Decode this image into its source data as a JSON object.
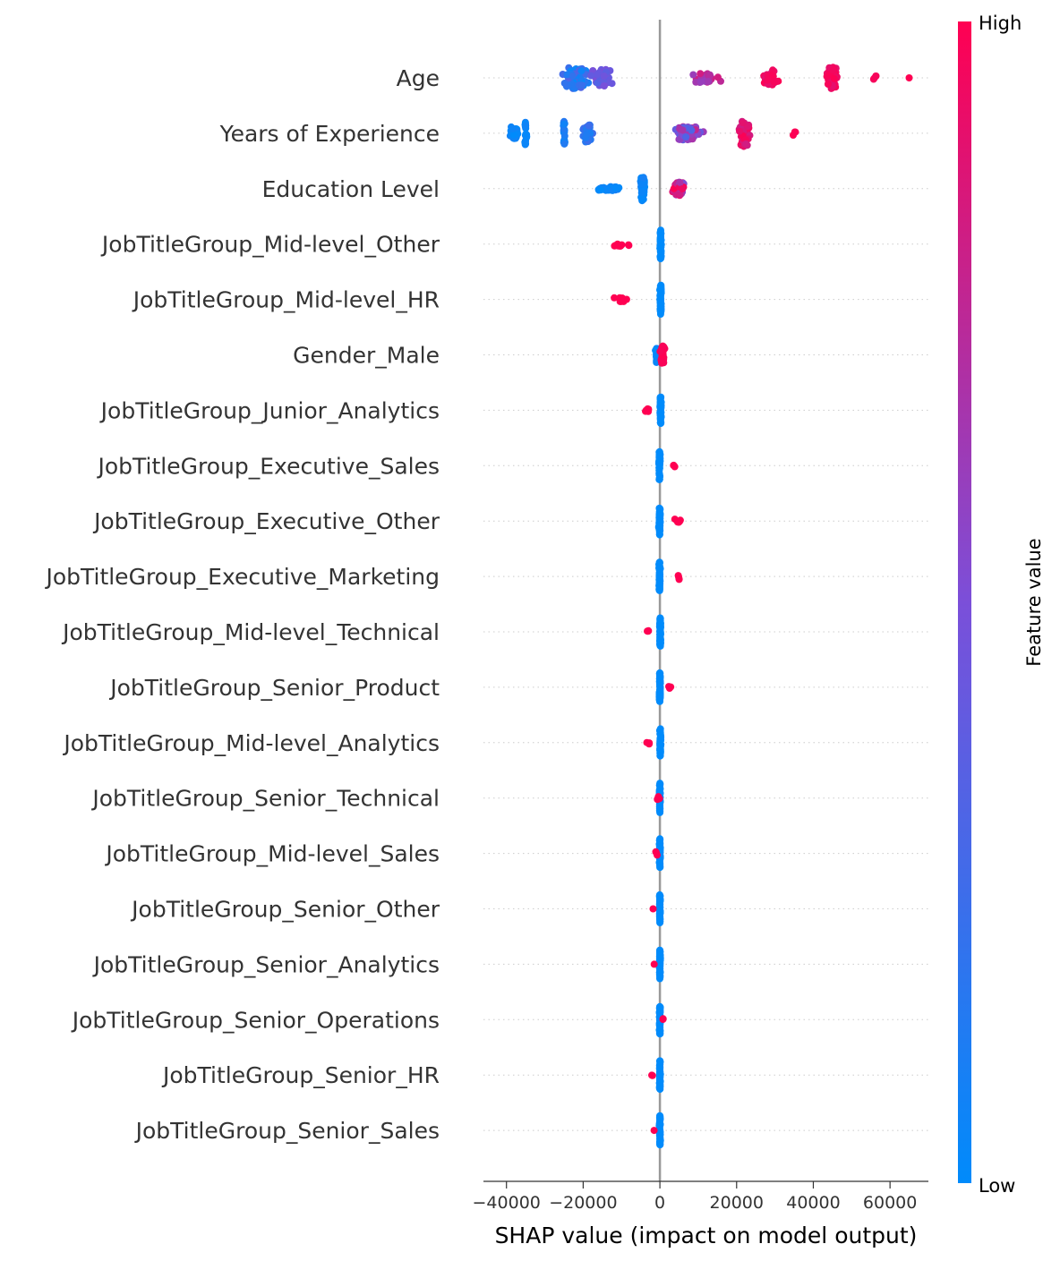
{
  "chart_data": {
    "type": "scatter",
    "subtype": "shap-beeswarm",
    "title": "",
    "xlabel": "SHAP value (impact on model output)",
    "ylabel": "",
    "xlim": [
      -46000,
      70000
    ],
    "xticks": [
      -40000,
      -20000,
      0,
      20000,
      40000,
      60000
    ],
    "xtick_labels": [
      "−40000",
      "−20000",
      "0",
      "20000",
      "40000",
      "60000"
    ],
    "zero_line": true,
    "grid": false,
    "colorbar": {
      "title": "Feature value",
      "high_label": "High",
      "low_label": "Low",
      "low_color": "#008bfb",
      "high_color": "#ff0052",
      "position": "right"
    },
    "features": [
      {
        "name": "Age",
        "clusters": [
          {
            "c": -22000,
            "s": 5500,
            "n": 70,
            "v": [
              0.0,
              0.35
            ],
            "w": 0.55
          },
          {
            "c": -15000,
            "s": 4000,
            "n": 40,
            "v": [
              0.3,
              0.55
            ],
            "w": 0.45
          },
          {
            "c": 12000,
            "s": 7000,
            "n": 30,
            "v": [
              0.6,
              0.85
            ],
            "w": 0.25
          },
          {
            "c": 29000,
            "s": 3500,
            "n": 35,
            "v": [
              0.85,
              1.0
            ],
            "w": 0.4
          },
          {
            "c": 45000,
            "s": 2500,
            "n": 40,
            "v": [
              0.9,
              1.0
            ],
            "w": 0.55
          },
          {
            "c": 56000,
            "s": 1500,
            "n": 4,
            "v": [
              0.95,
              1.0
            ],
            "w": 0.1
          },
          {
            "c": 65000,
            "s": 200,
            "n": 1,
            "v": [
              1.0,
              1.0
            ],
            "w": 0.0
          }
        ]
      },
      {
        "name": "Years of Experience",
        "clusters": [
          {
            "c": -38000,
            "s": 2500,
            "n": 30,
            "v": [
              0.0,
              0.1
            ],
            "w": 0.35
          },
          {
            "c": -35000,
            "s": 400,
            "n": 20,
            "v": [
              0.0,
              0.1
            ],
            "w": 0.6
          },
          {
            "c": -25000,
            "s": 400,
            "n": 25,
            "v": [
              0.05,
              0.15
            ],
            "w": 0.6
          },
          {
            "c": -19000,
            "s": 2000,
            "n": 40,
            "v": [
              0.1,
              0.25
            ],
            "w": 0.45
          },
          {
            "c": 7000,
            "s": 6000,
            "n": 50,
            "v": [
              0.3,
              0.8
            ],
            "w": 0.35
          },
          {
            "c": 22000,
            "s": 2000,
            "n": 60,
            "v": [
              0.8,
              1.0
            ],
            "w": 0.7
          },
          {
            "c": 35000,
            "s": 1500,
            "n": 3,
            "v": [
              0.95,
              1.0
            ],
            "w": 0.1
          }
        ]
      },
      {
        "name": "Education Level",
        "clusters": [
          {
            "c": -13000,
            "s": 4500,
            "n": 40,
            "v": [
              0.0,
              0.1
            ],
            "w": 0.1
          },
          {
            "c": -4500,
            "s": 800,
            "n": 50,
            "v": [
              0.0,
              0.1
            ],
            "w": 0.65
          },
          {
            "c": 5000,
            "s": 2500,
            "n": 40,
            "v": [
              0.5,
              1.0
            ],
            "w": 0.35
          }
        ]
      },
      {
        "name": "JobTitleGroup_Mid-level_Other",
        "clusters": [
          {
            "c": 200,
            "s": 300,
            "n": 60,
            "v": [
              0.0,
              0.0
            ],
            "w": 0.75
          },
          {
            "c": -10000,
            "s": 3500,
            "n": 10,
            "v": [
              1.0,
              1.0
            ],
            "w": 0.12
          }
        ]
      },
      {
        "name": "JobTitleGroup_Mid-level_HR",
        "clusters": [
          {
            "c": 200,
            "s": 300,
            "n": 60,
            "v": [
              0.0,
              0.0
            ],
            "w": 0.75
          },
          {
            "c": -10000,
            "s": 3000,
            "n": 9,
            "v": [
              1.0,
              1.0
            ],
            "w": 0.12
          }
        ]
      },
      {
        "name": "Gender_Male",
        "clusters": [
          {
            "c": -800,
            "s": 500,
            "n": 30,
            "v": [
              0.0,
              0.05
            ],
            "w": 0.4
          },
          {
            "c": 700,
            "s": 900,
            "n": 40,
            "v": [
              0.95,
              1.0
            ],
            "w": 0.45
          }
        ]
      },
      {
        "name": "JobTitleGroup_Junior_Analytics",
        "clusters": [
          {
            "c": 200,
            "s": 250,
            "n": 60,
            "v": [
              0.0,
              0.0
            ],
            "w": 0.75
          },
          {
            "c": -3000,
            "s": 1500,
            "n": 6,
            "v": [
              1.0,
              1.0
            ],
            "w": 0.1
          }
        ]
      },
      {
        "name": "JobTitleGroup_Executive_Sales",
        "clusters": [
          {
            "c": -100,
            "s": 300,
            "n": 60,
            "v": [
              0.0,
              0.0
            ],
            "w": 0.75
          },
          {
            "c": 3500,
            "s": 2500,
            "n": 3,
            "v": [
              1.0,
              1.0
            ],
            "w": 0.1
          }
        ]
      },
      {
        "name": "JobTitleGroup_Executive_Other",
        "clusters": [
          {
            "c": -100,
            "s": 300,
            "n": 60,
            "v": [
              0.0,
              0.0
            ],
            "w": 0.75
          },
          {
            "c": 5500,
            "s": 2500,
            "n": 5,
            "v": [
              1.0,
              1.0
            ],
            "w": 0.12
          }
        ]
      },
      {
        "name": "JobTitleGroup_Executive_Marketing",
        "clusters": [
          {
            "c": -100,
            "s": 250,
            "n": 60,
            "v": [
              0.0,
              0.0
            ],
            "w": 0.75
          },
          {
            "c": 5000,
            "s": 700,
            "n": 4,
            "v": [
              1.0,
              1.0
            ],
            "w": 0.15
          }
        ]
      },
      {
        "name": "JobTitleGroup_Mid-level_Technical",
        "clusters": [
          {
            "c": 100,
            "s": 250,
            "n": 60,
            "v": [
              0.0,
              0.0
            ],
            "w": 0.75
          },
          {
            "c": -3500,
            "s": 1200,
            "n": 3,
            "v": [
              1.0,
              1.0
            ],
            "w": 0.1
          }
        ]
      },
      {
        "name": "JobTitleGroup_Senior_Product",
        "clusters": [
          {
            "c": 0,
            "s": 250,
            "n": 60,
            "v": [
              0.0,
              0.0
            ],
            "w": 0.75
          },
          {
            "c": 2500,
            "s": 600,
            "n": 3,
            "v": [
              1.0,
              1.0
            ],
            "w": 0.1
          }
        ]
      },
      {
        "name": "JobTitleGroup_Mid-level_Analytics",
        "clusters": [
          {
            "c": 100,
            "s": 250,
            "n": 60,
            "v": [
              0.0,
              0.0
            ],
            "w": 0.75
          },
          {
            "c": -3000,
            "s": 1800,
            "n": 3,
            "v": [
              1.0,
              1.0
            ],
            "w": 0.1
          }
        ]
      },
      {
        "name": "JobTitleGroup_Senior_Technical",
        "clusters": [
          {
            "c": 0,
            "s": 200,
            "n": 60,
            "v": [
              0.0,
              0.0
            ],
            "w": 0.75
          },
          {
            "c": -600,
            "s": 900,
            "n": 4,
            "v": [
              1.0,
              1.0
            ],
            "w": 0.1
          }
        ]
      },
      {
        "name": "JobTitleGroup_Mid-level_Sales",
        "clusters": [
          {
            "c": 0,
            "s": 200,
            "n": 60,
            "v": [
              0.0,
              0.0
            ],
            "w": 0.75
          },
          {
            "c": -900,
            "s": 900,
            "n": 3,
            "v": [
              1.0,
              1.0
            ],
            "w": 0.1
          }
        ]
      },
      {
        "name": "JobTitleGroup_Senior_Other",
        "clusters": [
          {
            "c": 0,
            "s": 200,
            "n": 60,
            "v": [
              0.0,
              0.0
            ],
            "w": 0.75
          },
          {
            "c": -1800,
            "s": 200,
            "n": 1,
            "v": [
              1.0,
              1.0
            ],
            "w": 0.0
          }
        ]
      },
      {
        "name": "JobTitleGroup_Senior_Analytics",
        "clusters": [
          {
            "c": 0,
            "s": 200,
            "n": 60,
            "v": [
              0.0,
              0.0
            ],
            "w": 0.75
          },
          {
            "c": -1500,
            "s": 200,
            "n": 1,
            "v": [
              1.0,
              1.0
            ],
            "w": 0.0
          }
        ]
      },
      {
        "name": "JobTitleGroup_Senior_Operations",
        "clusters": [
          {
            "c": 0,
            "s": 200,
            "n": 60,
            "v": [
              0.0,
              0.0
            ],
            "w": 0.75
          },
          {
            "c": 800,
            "s": 300,
            "n": 2,
            "v": [
              1.0,
              1.0
            ],
            "w": 0.05
          }
        ]
      },
      {
        "name": "JobTitleGroup_Senior_HR",
        "clusters": [
          {
            "c": 0,
            "s": 200,
            "n": 60,
            "v": [
              0.0,
              0.0
            ],
            "w": 0.75
          },
          {
            "c": -2000,
            "s": 500,
            "n": 2,
            "v": [
              1.0,
              1.0
            ],
            "w": 0.05
          }
        ]
      },
      {
        "name": "JobTitleGroup_Senior_Sales",
        "clusters": [
          {
            "c": 0,
            "s": 200,
            "n": 60,
            "v": [
              0.0,
              0.0
            ],
            "w": 0.75
          },
          {
            "c": -1600,
            "s": 200,
            "n": 1,
            "v": [
              1.0,
              1.0
            ],
            "w": 0.0
          }
        ]
      }
    ]
  }
}
